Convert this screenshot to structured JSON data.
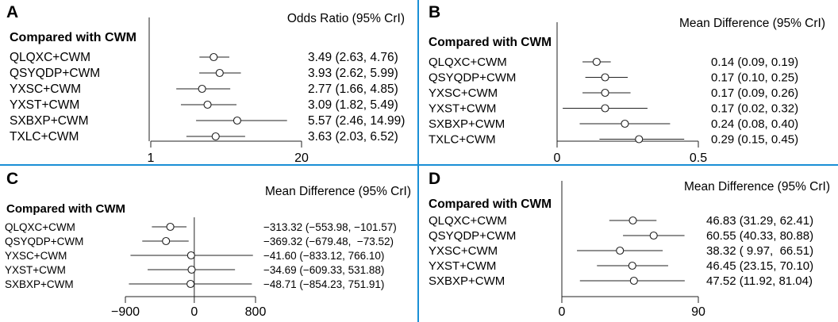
{
  "figure": {
    "divider_color": "#1a8fd6",
    "line_color": "#222222"
  },
  "chart_data": [
    {
      "panel": "A",
      "type": "forest",
      "heading": "Compared with CWM",
      "measure": "Odds Ratio (95% CrI)",
      "axis": {
        "min": 1,
        "max": 20,
        "ticks": [
          1,
          20
        ],
        "tick_labels": [
          "1",
          "20"
        ],
        "scale": "log",
        "reference": null
      },
      "rows": [
        {
          "label": "QLQXC+CWM",
          "est": 3.49,
          "lo": 2.63,
          "hi": 4.76,
          "text": "3.49 (2.63, 4.76)"
        },
        {
          "label": "QSYQDP+CWM",
          "est": 3.93,
          "lo": 2.62,
          "hi": 5.99,
          "text": "3.93 (2.62, 5.99)"
        },
        {
          "label": "YXSC+CWM",
          "est": 2.77,
          "lo": 1.66,
          "hi": 4.85,
          "text": "2.77 (1.66, 4.85)"
        },
        {
          "label": "YXST+CWM",
          "est": 3.09,
          "lo": 1.82,
          "hi": 5.49,
          "text": "3.09 (1.82, 5.49)"
        },
        {
          "label": "SXBXP+CWM",
          "est": 5.57,
          "lo": 2.46,
          "hi": 14.99,
          "text": "5.57 (2.46, 14.99)"
        },
        {
          "label": "TXLC+CWM",
          "est": 3.63,
          "lo": 2.03,
          "hi": 6.52,
          "text": "3.63 (2.03, 6.52)"
        }
      ]
    },
    {
      "panel": "B",
      "type": "forest",
      "heading": "Compared with CWM",
      "measure": "Mean Difference (95% CrI)",
      "axis": {
        "min": 0,
        "max": 0.5,
        "ticks": [
          0,
          0.5
        ],
        "tick_labels": [
          "0",
          "0.5"
        ],
        "scale": "linear",
        "reference": null
      },
      "rows": [
        {
          "label": "QLQXC+CWM",
          "est": 0.14,
          "lo": 0.09,
          "hi": 0.19,
          "text": "0.14 (0.09, 0.19)"
        },
        {
          "label": "QSYQDP+CWM",
          "est": 0.17,
          "lo": 0.1,
          "hi": 0.25,
          "text": "0.17 (0.10, 0.25)"
        },
        {
          "label": "YXSC+CWM",
          "est": 0.17,
          "lo": 0.09,
          "hi": 0.26,
          "text": "0.17 (0.09, 0.26)"
        },
        {
          "label": "YXST+CWM",
          "est": 0.17,
          "lo": 0.02,
          "hi": 0.32,
          "text": "0.17 (0.02, 0.32)"
        },
        {
          "label": "SXBXP+CWM",
          "est": 0.24,
          "lo": 0.08,
          "hi": 0.4,
          "text": "0.24 (0.08, 0.40)"
        },
        {
          "label": "TXLC+CWM",
          "est": 0.29,
          "lo": 0.15,
          "hi": 0.45,
          "text": "0.29 (0.15, 0.45)"
        }
      ]
    },
    {
      "panel": "C",
      "type": "forest",
      "heading": "Compared with CWM",
      "measure": "Mean Difference (95% CrI)",
      "axis": {
        "min": -900,
        "max": 800,
        "ticks": [
          -900,
          0,
          800
        ],
        "tick_labels": [
          "−900",
          "0",
          "800"
        ],
        "scale": "linear",
        "reference": 0
      },
      "rows": [
        {
          "label": "QLQXC+CWM",
          "est": -313.32,
          "lo": -553.98,
          "hi": -101.57,
          "text": "−313.32 (−553.98, −101.57)"
        },
        {
          "label": "QSYQDP+CWM",
          "est": -369.32,
          "lo": -679.48,
          "hi": -73.52,
          "text": "−369.32 (−679.48,  −73.52)"
        },
        {
          "label": "YXSC+CWM",
          "est": -41.6,
          "lo": -833.12,
          "hi": 766.1,
          "text": "−41.60 (−833.12, 766.10)"
        },
        {
          "label": "YXST+CWM",
          "est": -34.69,
          "lo": -609.33,
          "hi": 531.88,
          "text": "−34.69 (−609.33, 531.88)"
        },
        {
          "label": "SXBXP+CWM",
          "est": -48.71,
          "lo": -854.23,
          "hi": 751.91,
          "text": "−48.71 (−854.23, 751.91)"
        }
      ]
    },
    {
      "panel": "D",
      "type": "forest",
      "heading": "Compared with CWM",
      "measure": "Mean Difference (95% CrI)",
      "axis": {
        "min": 0,
        "max": 90,
        "ticks": [
          0,
          90
        ],
        "tick_labels": [
          "0",
          "90"
        ],
        "scale": "linear",
        "reference": null
      },
      "rows": [
        {
          "label": "QLQXC+CWM",
          "est": 46.83,
          "lo": 31.29,
          "hi": 62.41,
          "text": "46.83 (31.29, 62.41)"
        },
        {
          "label": "QSYQDP+CWM",
          "est": 60.55,
          "lo": 40.33,
          "hi": 80.88,
          "text": "60.55 (40.33, 80.88)"
        },
        {
          "label": "YXSC+CWM",
          "est": 38.32,
          "lo": 9.97,
          "hi": 66.51,
          "text": "38.32 ( 9.97,  66.51)"
        },
        {
          "label": "YXST+CWM",
          "est": 46.45,
          "lo": 23.15,
          "hi": 70.1,
          "text": "46.45 (23.15, 70.10)"
        },
        {
          "label": "SXBXP+CWM",
          "est": 47.52,
          "lo": 11.92,
          "hi": 81.04,
          "text": "47.52 (11.92, 81.04)"
        }
      ]
    }
  ]
}
